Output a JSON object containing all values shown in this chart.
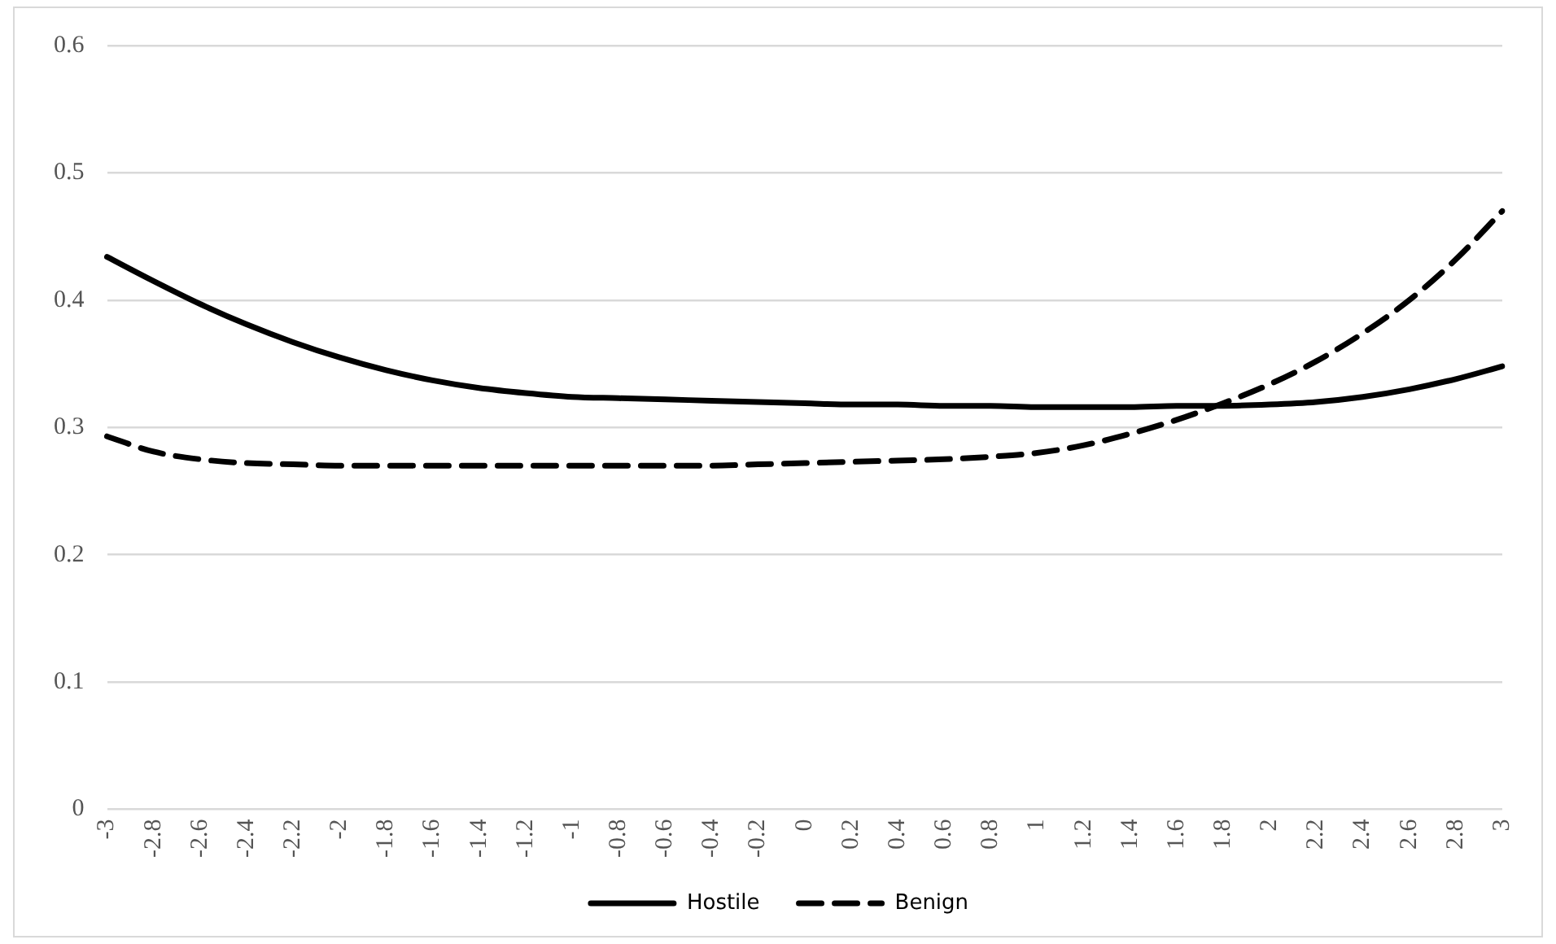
{
  "chart_data": {
    "type": "line",
    "categories": [
      "-3",
      "-2.8",
      "-2.6",
      "-2.4",
      "-2.2",
      "-2",
      "-1.8",
      "-1.6",
      "-1.4",
      "-1.2",
      "-1",
      "-0.8",
      "-0.6",
      "-0.4",
      "-0.2",
      "0",
      "0.2",
      "0.4",
      "0.6",
      "0.8",
      "1",
      "1.2",
      "1.4",
      "1.6",
      "1.8",
      "2",
      "2.2",
      "2.4",
      "2.6",
      "2.8",
      "3"
    ],
    "series": [
      {
        "name": "Hostile",
        "color": "#000000",
        "line_style": "solid",
        "values": [
          0.434,
          0.415,
          0.397,
          0.381,
          0.367,
          0.355,
          0.345,
          0.337,
          0.331,
          0.327,
          0.324,
          0.323,
          0.322,
          0.321,
          0.32,
          0.319,
          0.318,
          0.318,
          0.317,
          0.317,
          0.316,
          0.316,
          0.316,
          0.317,
          0.317,
          0.318,
          0.32,
          0.324,
          0.33,
          0.338,
          0.348
        ]
      },
      {
        "name": "Benign",
        "color": "#000000",
        "line_style": "dashed",
        "values": [
          0.293,
          0.281,
          0.275,
          0.272,
          0.271,
          0.27,
          0.27,
          0.27,
          0.27,
          0.27,
          0.27,
          0.27,
          0.27,
          0.27,
          0.271,
          0.272,
          0.273,
          0.274,
          0.275,
          0.277,
          0.28,
          0.286,
          0.295,
          0.306,
          0.319,
          0.334,
          0.352,
          0.374,
          0.4,
          0.432,
          0.47
        ]
      }
    ],
    "ylim": [
      0,
      0.6
    ],
    "yticks": [
      0,
      0.1,
      0.2,
      0.3,
      0.4,
      0.5,
      0.6
    ],
    "grid": "y",
    "legend": "bottom",
    "marker": "none"
  }
}
